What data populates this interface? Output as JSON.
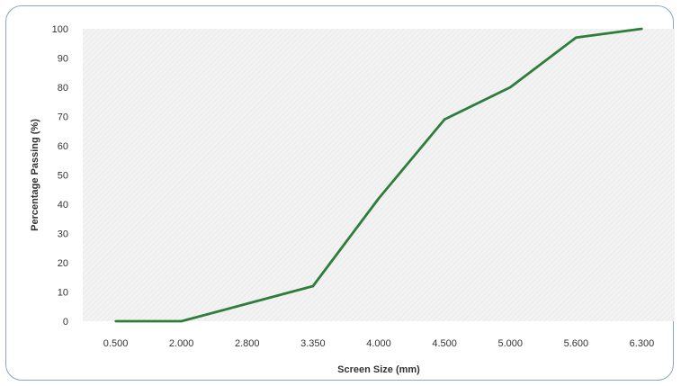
{
  "chart_data": {
    "type": "line",
    "title": "",
    "xlabel": "Screen Size (mm)",
    "ylabel": "Percentage Passing (%)",
    "categories": [
      "0.500",
      "2.000",
      "2.800",
      "3.350",
      "4.000",
      "4.500",
      "5.000",
      "5.600",
      "6.300"
    ],
    "series": [
      {
        "values": [
          0,
          0,
          6,
          12,
          42,
          69,
          80,
          97,
          100
        ],
        "color": "#2e7d3a"
      }
    ],
    "yticks": [
      "0",
      "10",
      "20",
      "30",
      "40",
      "50",
      "60",
      "70",
      "80",
      "90",
      "100"
    ],
    "ylim": [
      0,
      100
    ],
    "grid": false,
    "plot_background": "#f2f2f2",
    "legend": "none"
  }
}
